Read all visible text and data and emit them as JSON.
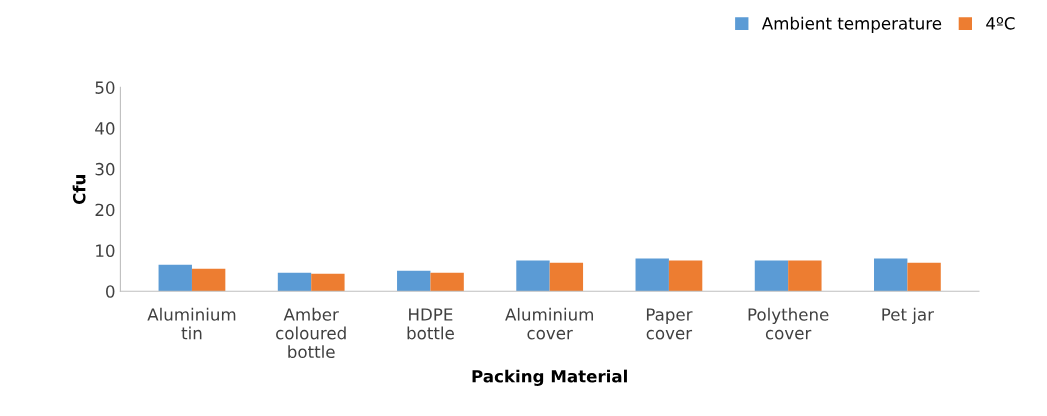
{
  "chart_data": {
    "type": "bar",
    "xlabel": "Packing Material",
    "ylabel": "Cfu",
    "categories": [
      "Aluminium\ntin",
      "Amber\ncoloured\nbottle",
      "HDPE\nbottle",
      "Aluminium\ncover",
      "Paper\ncover",
      "Polythene\ncover",
      "Pet jar"
    ],
    "series": [
      {
        "name": "Ambient temperature",
        "color": "#5b9bd5",
        "values": [
          6.5,
          4.5,
          5,
          7.5,
          8,
          7.5,
          8
        ]
      },
      {
        "name": "4ºC",
        "color": "#ed7d31",
        "values": [
          5.5,
          4.3,
          4.5,
          7,
          7.5,
          7.5,
          7
        ]
      }
    ],
    "ylim": [
      0,
      50
    ],
    "yticks": [
      0,
      10,
      20,
      30,
      40,
      50
    ],
    "grid": false,
    "legend": "top right"
  }
}
